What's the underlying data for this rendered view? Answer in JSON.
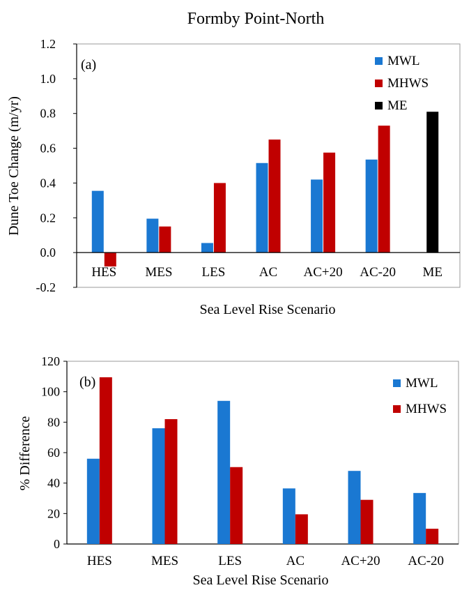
{
  "figure_title": "Formby Point-North",
  "colors": {
    "MWL": "#1a78d2",
    "MHWS": "#c00000",
    "ME": "#000000"
  },
  "chart_data": [
    {
      "type": "bar",
      "panel_label": "(a)",
      "categories": [
        "HES",
        "MES",
        "LES",
        "AC",
        "AC+20",
        "AC-20",
        "ME"
      ],
      "series": [
        {
          "name": "MWL",
          "values": [
            0.355,
            0.195,
            0.055,
            0.515,
            0.42,
            0.535,
            null
          ]
        },
        {
          "name": "MHWS",
          "values": [
            -0.08,
            0.15,
            0.4,
            0.65,
            0.575,
            0.73,
            null
          ]
        },
        {
          "name": "ME",
          "values": [
            null,
            null,
            null,
            null,
            null,
            null,
            0.81
          ]
        }
      ],
      "xlabel": "Sea Level Rise Scenario",
      "ylabel": "Dune Toe  Change (m/yr)",
      "ylim": [
        -0.2,
        1.2
      ],
      "yticks": [
        "-0.2",
        "0.0",
        "0.2",
        "0.4",
        "0.6",
        "0.8",
        "1.0",
        "1.2"
      ],
      "grid": false,
      "legend_position": "top-right"
    },
    {
      "type": "bar",
      "panel_label": "(b)",
      "categories": [
        "HES",
        "MES",
        "LES",
        "AC",
        "AC+20",
        "AC-20"
      ],
      "series": [
        {
          "name": "MWL",
          "values": [
            56,
            76,
            94,
            36.5,
            48,
            33.5
          ]
        },
        {
          "name": "MHWS",
          "values": [
            109.5,
            82,
            50.5,
            19.5,
            29,
            10
          ]
        }
      ],
      "xlabel": "Sea Level Rise Scenario",
      "ylabel": "% Difference",
      "ylim": [
        0,
        120
      ],
      "yticks": [
        "0",
        "20",
        "40",
        "60",
        "80",
        "100",
        "120"
      ],
      "grid": false,
      "legend_position": "top-right"
    }
  ]
}
